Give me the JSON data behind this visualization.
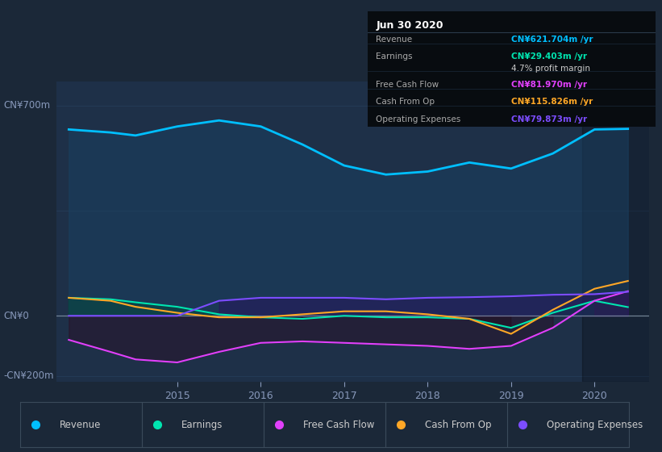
{
  "bg_color": "#1b2838",
  "plot_bg_color": "#1e3048",
  "y_label_top": "CN¥700m",
  "y_label_zero": "CN¥0",
  "y_label_bottom": "-CN¥200m",
  "ylim": [
    -220,
    780
  ],
  "x_years": [
    2013.7,
    2014.2,
    2014.5,
    2015.0,
    2015.5,
    2016.0,
    2016.5,
    2017.0,
    2017.5,
    2018.0,
    2018.5,
    2019.0,
    2019.5,
    2020.0,
    2020.4
  ],
  "revenue": [
    620,
    610,
    600,
    630,
    650,
    630,
    570,
    500,
    470,
    480,
    510,
    490,
    540,
    620,
    622
  ],
  "earnings": [
    60,
    55,
    45,
    30,
    5,
    -5,
    -10,
    0,
    -5,
    -5,
    -10,
    -40,
    10,
    50,
    29
  ],
  "free_cash_flow": [
    -80,
    -120,
    -145,
    -155,
    -120,
    -90,
    -85,
    -90,
    -95,
    -100,
    -110,
    -100,
    -40,
    50,
    82
  ],
  "cash_from_op": [
    60,
    50,
    30,
    10,
    -5,
    -5,
    5,
    15,
    15,
    5,
    -10,
    -60,
    20,
    90,
    116
  ],
  "operating_expenses": [
    0,
    0,
    0,
    0,
    50,
    60,
    60,
    60,
    55,
    60,
    62,
    65,
    70,
    72,
    80
  ],
  "revenue_color": "#00bfff",
  "earnings_color": "#00e5b0",
  "free_cash_flow_color": "#e040fb",
  "cash_from_op_color": "#ffa726",
  "operating_expenses_color": "#7c4dff",
  "info_box": {
    "title": "Jun 30 2020",
    "rows": [
      {
        "label": "Revenue",
        "value": "CN¥621.704m /yr",
        "value_color": "#00bfff",
        "has_sub": false
      },
      {
        "label": "Earnings",
        "value": "CN¥29.403m /yr",
        "value_color": "#00e5b0",
        "has_sub": true,
        "sub": "4.7% profit margin"
      },
      {
        "label": "Free Cash Flow",
        "value": "CN¥81.970m /yr",
        "value_color": "#e040fb",
        "has_sub": false
      },
      {
        "label": "Cash From Op",
        "value": "CN¥115.826m /yr",
        "value_color": "#ffa726",
        "has_sub": false
      },
      {
        "label": "Operating Expenses",
        "value": "CN¥79.873m /yr",
        "value_color": "#7c4dff",
        "has_sub": false
      }
    ]
  },
  "legend_items": [
    {
      "label": "Revenue",
      "color": "#00bfff"
    },
    {
      "label": "Earnings",
      "color": "#00e5b0"
    },
    {
      "label": "Free Cash Flow",
      "color": "#e040fb"
    },
    {
      "label": "Cash From Op",
      "color": "#ffa726"
    },
    {
      "label": "Operating Expenses",
      "color": "#7c4dff"
    }
  ],
  "x_ticks": [
    2015.0,
    2016.0,
    2017.0,
    2018.0,
    2019.0,
    2020.0
  ],
  "x_tick_labels": [
    "2015",
    "2016",
    "2017",
    "2018",
    "2019",
    "2020"
  ],
  "highlight_start": 2019.85,
  "x_min": 2013.55,
  "x_max": 2020.65
}
